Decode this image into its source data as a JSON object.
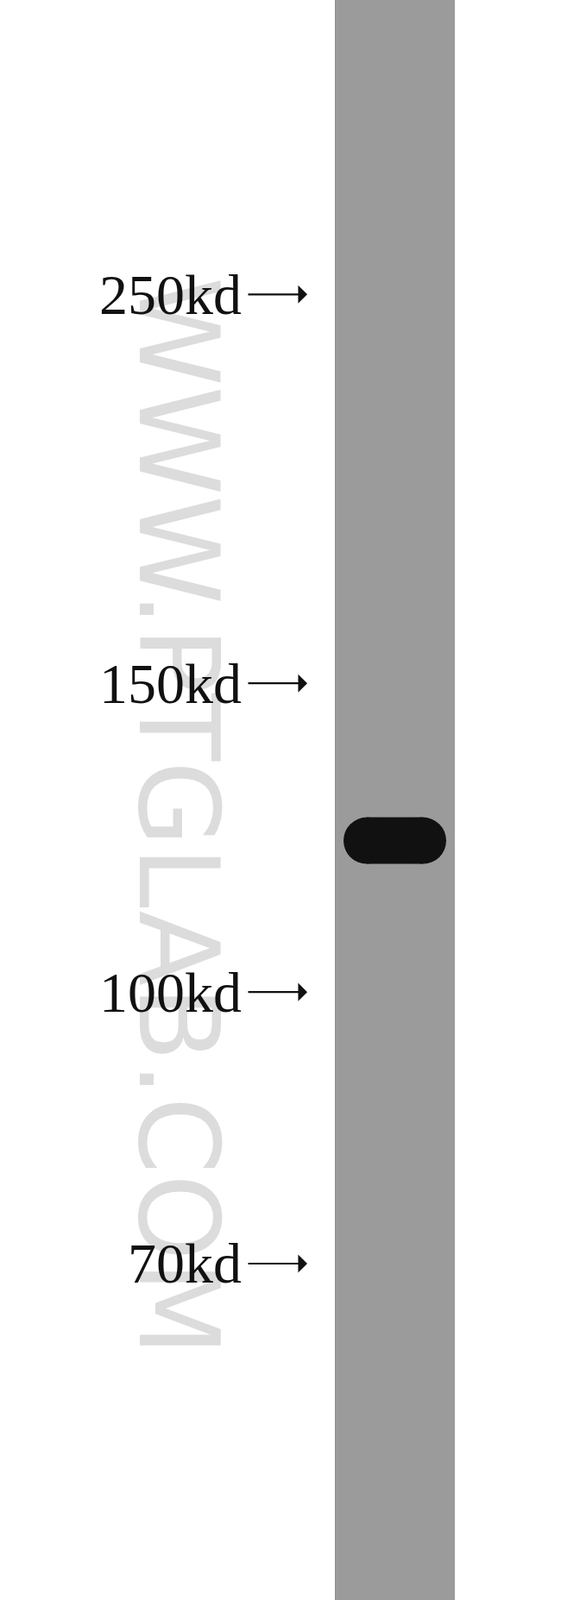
{
  "chart_data": {
    "type": "blot",
    "log": "y",
    "ylim": [
      45,
      368
    ],
    "yticks": [
      {
        "value": 250,
        "label": "250kd"
      },
      {
        "value": 150,
        "label": "150kd"
      },
      {
        "value": 100,
        "label": "100kd"
      },
      {
        "value": 70,
        "label": "70kd"
      }
    ],
    "bands": [
      122
    ],
    "watermark": "WWW.PTGLAB.COM"
  }
}
